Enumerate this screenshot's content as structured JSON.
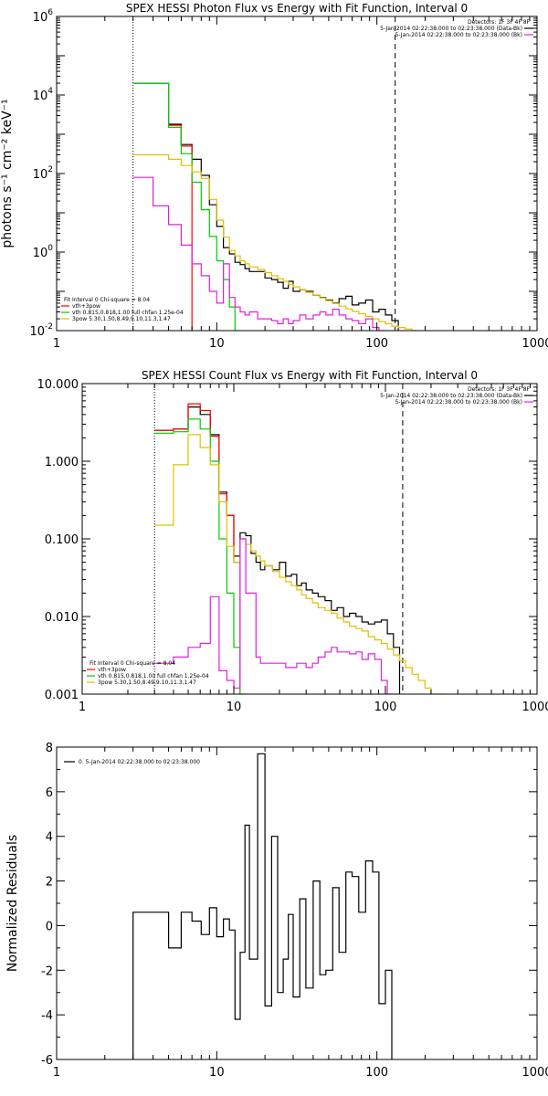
{
  "chart_data": [
    {
      "type": "line",
      "title": "SPEX HESSI Photon Flux vs Energy with Fit Function, Interval 0",
      "ylabel": "photons s⁻¹ cm⁻² keV⁻¹",
      "xlabel": "",
      "xscale": "log",
      "yscale": "log",
      "xlim": [
        1,
        1000
      ],
      "ylim": [
        0.01,
        1000000
      ],
      "xticks": [
        {
          "v": 1,
          "t": "1"
        },
        {
          "v": 10,
          "t": "10"
        },
        {
          "v": 100,
          "t": "100"
        },
        {
          "v": 1000,
          "t": "1000"
        }
      ],
      "yticks": [
        {
          "v": 0.01,
          "b": "10",
          "e": "-2"
        },
        {
          "v": 1,
          "b": "10",
          "e": "0"
        },
        {
          "v": 100,
          "b": "10",
          "e": "2"
        },
        {
          "v": 10000,
          "b": "10",
          "e": "4"
        },
        {
          "v": 1000000,
          "b": "10",
          "e": "6"
        }
      ],
      "vlines": [
        {
          "x": 3,
          "style": "dotted"
        },
        {
          "x": 130,
          "style": "dashed"
        }
      ],
      "edges": [
        3,
        4,
        5,
        6,
        7,
        8,
        9,
        10,
        11,
        12,
        13,
        14,
        15,
        16,
        18,
        20,
        22,
        24,
        26,
        28,
        30,
        33,
        36,
        40,
        44,
        48,
        53,
        58,
        64,
        70,
        77,
        85,
        94,
        103,
        113,
        124,
        136,
        150,
        165,
        182,
        200,
        220
      ],
      "series": [
        {
          "name": "",
          "color": "#000000",
          "values": [
            20000,
            20000,
            1800,
            550,
            230,
            90,
            16,
            4.5,
            1.3,
            0.9,
            0.55,
            0.48,
            0.38,
            0.32,
            0.32,
            0.22,
            0.2,
            0.17,
            0.12,
            0.18,
            0.1,
            0.11,
            0.1,
            0.08,
            0.07,
            0.06,
            0.05,
            0.065,
            0.075,
            0.045,
            0.05,
            0.06,
            0.03,
            0.035,
            0.025,
            0.018,
            null,
            null,
            null,
            null,
            null
          ]
        },
        {
          "name": "",
          "color": "#ff0000",
          "values": [
            null,
            null,
            1700,
            500,
            null,
            null,
            null,
            null,
            null,
            null,
            null,
            null,
            null,
            null,
            null,
            null,
            null,
            null,
            null,
            null,
            null,
            null,
            null,
            null,
            null,
            null,
            null,
            null,
            null,
            null,
            null,
            null,
            null,
            null,
            null,
            null,
            null,
            null,
            null,
            null,
            null
          ]
        },
        {
          "name": "",
          "color": "#00cc00",
          "values": [
            20000,
            20000,
            1500,
            320,
            60,
            12,
            2.5,
            0.6,
            0.2,
            0.04,
            0.008,
            null,
            null,
            null,
            null,
            null,
            null,
            null,
            null,
            null,
            null,
            null,
            null,
            null,
            null,
            null,
            null,
            null,
            null,
            null,
            null,
            null,
            null,
            null,
            null,
            null,
            null,
            null,
            null,
            null,
            null
          ]
        },
        {
          "name": "",
          "color": "#e0c000",
          "values": [
            300,
            300,
            230,
            160,
            110,
            75,
            22,
            6.5,
            2.4,
            1.1,
            0.8,
            0.6,
            0.5,
            0.42,
            0.36,
            0.3,
            0.25,
            0.21,
            0.18,
            0.15,
            0.13,
            0.11,
            0.095,
            0.08,
            0.068,
            0.058,
            0.049,
            0.042,
            0.036,
            0.031,
            0.027,
            0.023,
            0.02,
            0.017,
            0.015,
            0.013,
            0.012,
            0.011,
            0.01,
            null,
            null
          ]
        },
        {
          "name": "",
          "color": "#e020e0",
          "values": [
            80,
            15,
            5,
            1.5,
            0.5,
            0.25,
            0.1,
            0.05,
            0.5,
            0.07,
            0.04,
            0.03,
            0.025,
            0.03,
            0.02,
            0.02,
            0.018,
            0.015,
            0.02,
            0.015,
            0.018,
            0.025,
            0.02,
            0.025,
            0.03,
            0.025,
            0.035,
            0.025,
            0.02,
            0.018,
            0.015,
            0.02,
            0.012,
            0.01,
            null,
            null,
            null,
            null,
            null,
            null,
            null
          ]
        }
      ],
      "legend_topright": {
        "detectors": "Detectors: 1F 3F 4F 8F",
        "rows": [
          {
            "text": "5-Jan-2014 02:22:38.000 to 02:23:38.000 (Data-Bk)",
            "color": "#000000"
          },
          {
            "text": "5-Jan-2014 02:22:38.000 to 02:23:38.000 (Bk)",
            "color": "#e020e0"
          }
        ]
      },
      "legend_bottomleft": {
        "header": "Fit Interval 0   Chi-square = 8.04",
        "rows": [
          {
            "text": "vth+3pow",
            "color": "#ff0000"
          },
          {
            "text": "vth 0.815,0.818,1.00  full chfan 1.25e-04",
            "color": "#00cc00"
          },
          {
            "text": "3pow 5.30,1.50,8.49,9.10,11.3,1.47",
            "color": "#e0c000"
          }
        ]
      }
    },
    {
      "type": "line",
      "title": "SPEX HESSI Count Flux vs Energy with Fit Function, Interval 0",
      "ylabel": "",
      "xlabel": "",
      "xscale": "log",
      "yscale": "log",
      "xlim": [
        1,
        1000
      ],
      "ylim": [
        0.001,
        10
      ],
      "xticks": [
        {
          "v": 1,
          "t": "1"
        },
        {
          "v": 10,
          "t": "10"
        },
        {
          "v": 100,
          "t": "100"
        },
        {
          "v": 1000,
          "t": "1000"
        }
      ],
      "yticks": [
        {
          "v": 0.001,
          "t": "0.001"
        },
        {
          "v": 0.01,
          "t": "0.010"
        },
        {
          "v": 0.1,
          "t": "0.100"
        },
        {
          "v": 1,
          "t": "1.000"
        },
        {
          "v": 10,
          "t": "10.000"
        }
      ],
      "vlines": [
        {
          "x": 3,
          "style": "dotted"
        },
        {
          "x": 130,
          "style": "dashed"
        }
      ],
      "edges": [
        3,
        4,
        5,
        6,
        7,
        8,
        9,
        10,
        11,
        12,
        13,
        14,
        15,
        16,
        18,
        20,
        22,
        24,
        26,
        28,
        30,
        33,
        36,
        40,
        44,
        48,
        53,
        58,
        64,
        70,
        77,
        85,
        94,
        103,
        113,
        124,
        136,
        150,
        165,
        182,
        200,
        220,
        245,
        270,
        300
      ],
      "series": [
        {
          "name": "",
          "color": "#000000",
          "values": [
            2.5,
            2.6,
            5.0,
            4.0,
            2.2,
            0.4,
            0.2,
            0.06,
            0.12,
            0.11,
            0.065,
            0.05,
            0.04,
            0.045,
            0.04,
            0.05,
            0.033,
            0.035,
            0.025,
            0.027,
            0.022,
            0.02,
            0.018,
            0.016,
            0.012,
            0.013,
            0.01,
            0.011,
            0.01,
            0.0085,
            0.008,
            0.0085,
            0.009,
            0.006,
            0.004,
            null,
            null,
            null,
            null,
            null,
            null,
            null,
            null,
            null
          ]
        },
        {
          "name": "",
          "color": "#ff0000",
          "values": [
            2.5,
            2.6,
            5.5,
            4.5,
            2.1,
            0.38,
            0.2,
            0.05,
            null,
            null,
            null,
            null,
            null,
            null,
            null,
            null,
            null,
            null,
            null,
            null,
            null,
            null,
            null,
            null,
            null,
            null,
            null,
            null,
            null,
            null,
            null,
            null,
            null,
            null,
            null,
            null,
            null,
            null,
            null,
            null,
            null,
            null,
            null,
            null
          ]
        },
        {
          "name": "",
          "color": "#00cc00",
          "values": [
            2.3,
            2.4,
            3.5,
            2.6,
            1.0,
            0.1,
            0.02,
            0.004,
            0.0008,
            null,
            null,
            null,
            null,
            null,
            null,
            null,
            null,
            null,
            null,
            null,
            null,
            null,
            null,
            null,
            null,
            null,
            null,
            null,
            null,
            null,
            null,
            null,
            null,
            null,
            null,
            null,
            null,
            null,
            null,
            null,
            null,
            null,
            null,
            null
          ]
        },
        {
          "name": "",
          "color": "#e0c000",
          "values": [
            0.15,
            0.9,
            2.2,
            1.5,
            0.9,
            0.3,
            0.08,
            0.05,
            0.1,
            0.085,
            0.07,
            0.06,
            0.052,
            0.045,
            0.038,
            0.032,
            0.028,
            0.025,
            0.022,
            0.019,
            0.017,
            0.015,
            0.013,
            0.012,
            0.011,
            0.0095,
            0.0085,
            0.0075,
            0.007,
            0.0065,
            0.0055,
            0.005,
            0.0045,
            0.0038,
            0.0032,
            0.0027,
            0.0022,
            0.0018,
            0.0015,
            0.0012,
            0.001,
            0.0008,
            null,
            null
          ]
        },
        {
          "name": "",
          "color": "#e020e0",
          "values": [
            0.0025,
            0.003,
            0.004,
            0.0045,
            0.018,
            0.002,
            0.0015,
            0.0012,
            0.1,
            0.02,
            0.02,
            0.003,
            0.0025,
            0.0025,
            0.0025,
            0.0025,
            0.0022,
            0.0022,
            0.0025,
            0.0025,
            0.0022,
            0.0025,
            0.003,
            0.0035,
            0.004,
            0.0035,
            0.0035,
            0.0033,
            0.0035,
            0.0028,
            0.0033,
            0.0028,
            0.0015,
            0.001,
            null,
            null,
            null,
            null,
            null,
            null,
            null,
            null,
            null,
            null
          ]
        }
      ],
      "legend_topright": {
        "detectors": "Detectors: 1F 3F 4F 8F",
        "rows": [
          {
            "text": "5-Jan-2014 02:22:38.000 to 02:23:38.000 (Data-Bk)",
            "color": "#000000"
          },
          {
            "text": "5-Jan-2014 02:22:38.000 to 02:23:38.000 (Bk)",
            "color": "#e020e0"
          }
        ]
      },
      "legend_bottomleft": {
        "header": "Fit Interval 0   Chi-square = 8.04",
        "rows": [
          {
            "text": "vth+3pow",
            "color": "#ff0000"
          },
          {
            "text": "vth 0.815,0.818,1.00  full chfan 1.25e-04",
            "color": "#00cc00"
          },
          {
            "text": "3pow 5.30,1.50,8.49,9.10,11.3,1.47",
            "color": "#e0c000"
          }
        ]
      }
    },
    {
      "type": "line",
      "title": "",
      "ylabel": "Normalized Residuals",
      "xlabel": "",
      "xscale": "log",
      "yscale": "linear",
      "xlim": [
        1,
        1000
      ],
      "ylim": [
        -6,
        8
      ],
      "xticks": [
        {
          "v": 1,
          "t": "1"
        },
        {
          "v": 10,
          "t": "10"
        },
        {
          "v": 100,
          "t": "100"
        },
        {
          "v": 1000,
          "t": "1000"
        }
      ],
      "yticks": [
        {
          "v": -6,
          "t": "-6"
        },
        {
          "v": -4,
          "t": "-4"
        },
        {
          "v": -2,
          "t": "-2"
        },
        {
          "v": 0,
          "t": "0"
        },
        {
          "v": 2,
          "t": "2"
        },
        {
          "v": 4,
          "t": "4"
        },
        {
          "v": 6,
          "t": "6"
        },
        {
          "v": 8,
          "t": "8"
        }
      ],
      "baseline": -6,
      "edges": [
        3,
        4,
        5,
        6,
        7,
        8,
        9,
        10,
        11,
        12,
        13,
        14,
        15,
        16,
        18,
        20,
        22,
        24,
        26,
        28,
        30,
        33,
        36,
        40,
        44,
        48,
        53,
        58,
        64,
        70,
        77,
        85,
        94,
        103,
        113,
        124,
        136
      ],
      "series": [
        {
          "name": "",
          "color": "#000000",
          "values": [
            0.6,
            0.6,
            -1.0,
            0.6,
            0.2,
            -0.4,
            0.8,
            -0.5,
            0.3,
            -0.2,
            -4.2,
            -1.2,
            4.5,
            -1.5,
            7.7,
            -3.6,
            4.0,
            -3.0,
            -1.5,
            0.5,
            -3.2,
            1.2,
            -2.8,
            2.0,
            -2.2,
            -2.0,
            1.7,
            -1.2,
            2.4,
            2.2,
            0.6,
            2.9,
            2.4,
            -3.5,
            -2.0,
            null
          ]
        }
      ],
      "legend_topleft": {
        "rows": [
          {
            "text": "0.  5-Jan-2014 02:22:38.000 to 02:23:38.000",
            "color": "#000000"
          }
        ]
      }
    }
  ]
}
